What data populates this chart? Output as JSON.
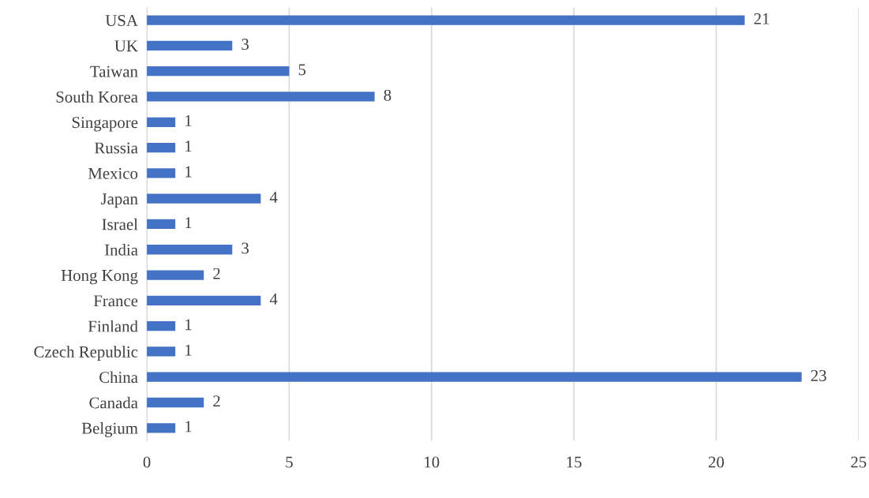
{
  "chart_data": {
    "type": "bar",
    "orientation": "horizontal",
    "categories": [
      "USA",
      "UK",
      "Taiwan",
      "South Korea",
      "Singapore",
      "Russia",
      "Mexico",
      "Japan",
      "Israel",
      "India",
      "Hong Kong",
      "France",
      "Finland",
      "Czech Republic",
      "China",
      "Canada",
      "Belgium"
    ],
    "values": [
      21,
      3,
      5,
      8,
      1,
      1,
      1,
      4,
      1,
      3,
      2,
      4,
      1,
      1,
      23,
      2,
      1
    ],
    "color": "#4472c4",
    "xlim": [
      0,
      25
    ],
    "xticks": [
      0,
      5,
      10,
      15,
      20,
      25
    ],
    "grid": "x",
    "data_labels": true
  }
}
